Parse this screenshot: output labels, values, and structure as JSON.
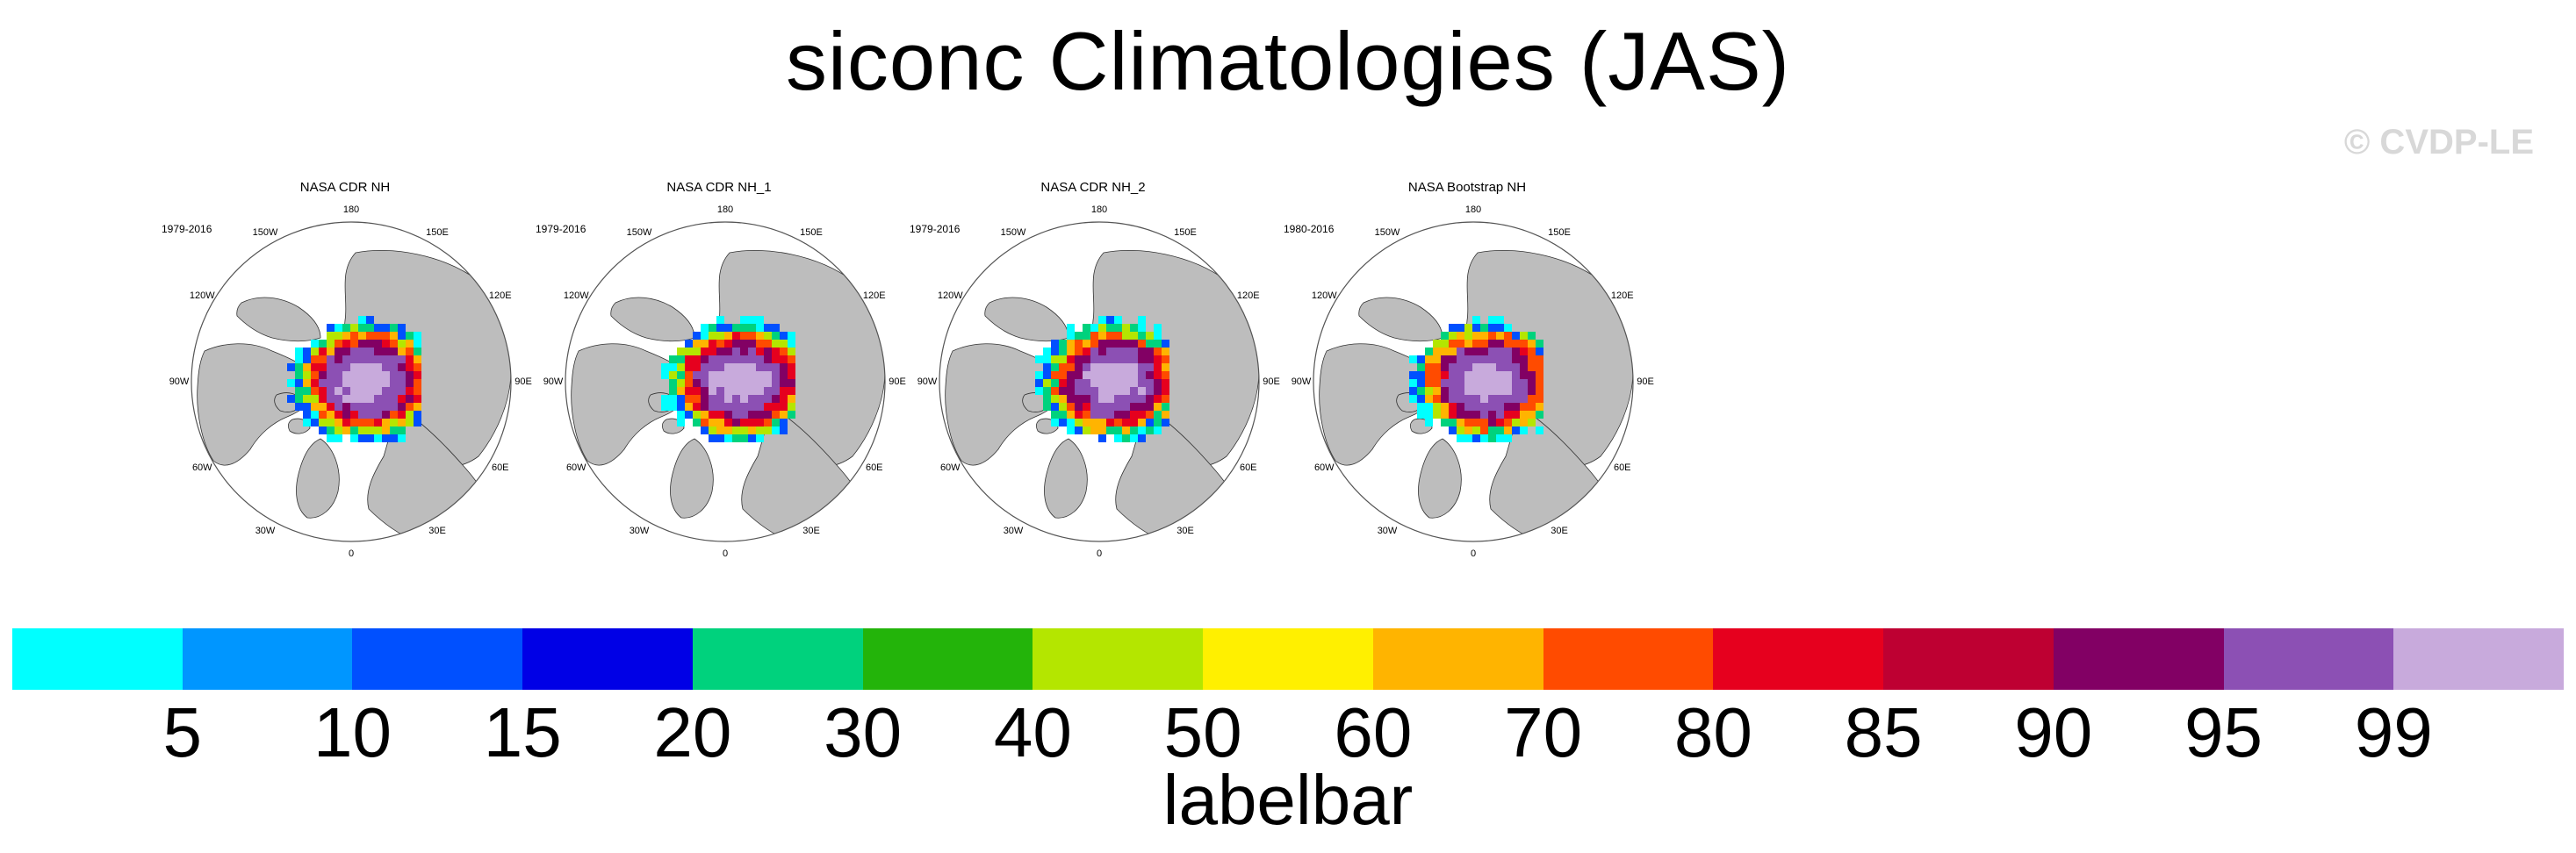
{
  "title": "siconc Climatologies (JAS)",
  "watermark": "© CVDP-LE",
  "panels": [
    {
      "title": "NASA CDR NH",
      "period": "1979-2016"
    },
    {
      "title": "NASA CDR NH_1",
      "period": "1979-2016"
    },
    {
      "title": "NASA CDR NH_2",
      "period": "1979-2016"
    },
    {
      "title": "NASA Bootstrap NH",
      "period": "1980-2016"
    }
  ],
  "longitude_labels": [
    "180",
    "150E",
    "120E",
    "90E",
    "60E",
    "30E",
    "0",
    "30W",
    "60W",
    "90W",
    "120W",
    "150W"
  ],
  "colors": {
    "land": "#bdbdbd",
    "ocean": "#ffffff",
    "outline": "#555555"
  },
  "labelbar": {
    "caption": "labelbar",
    "ticks": [
      "5",
      "10",
      "15",
      "20",
      "30",
      "40",
      "50",
      "60",
      "70",
      "80",
      "85",
      "90",
      "95",
      "99"
    ],
    "colors": [
      "#00ffff",
      "#0096ff",
      "#0050ff",
      "#0000e6",
      "#00d27d",
      "#23b40a",
      "#b4e600",
      "#fff000",
      "#ffb400",
      "#ff4b00",
      "#e6001e",
      "#be0032",
      "#820064",
      "#8c50b4",
      "#c8aadc"
    ]
  }
}
